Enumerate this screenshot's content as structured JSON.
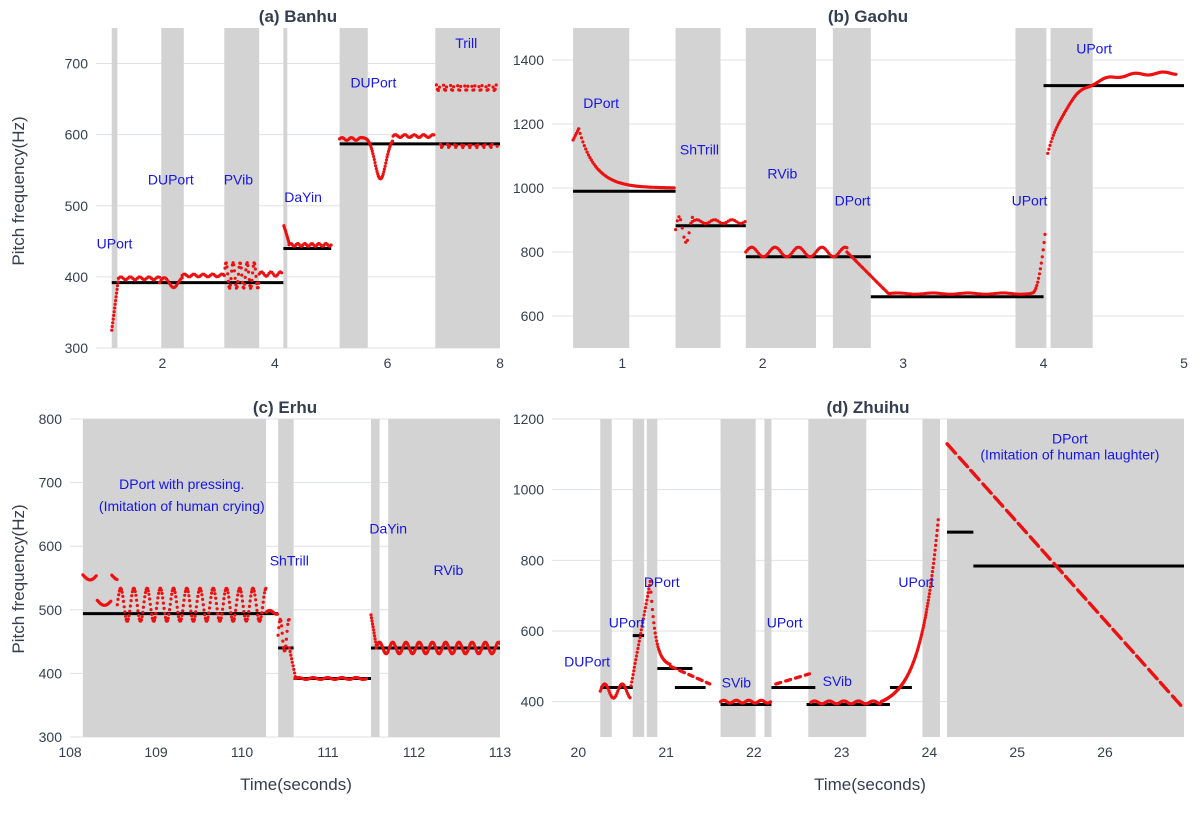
{
  "figure": {
    "ylabel": "Pitch frequency(Hz)",
    "xlabel": "Time(seconds)"
  },
  "colors": {
    "band": "#d3d3d3",
    "pitch": "#ee1111",
    "reference": "#000000",
    "annotation": "#1515e6",
    "text": "#333f4f"
  },
  "chart_data": [
    {
      "type": "scatter",
      "title": "(a) Banhu",
      "xlim": [
        0.82,
        8.0
      ],
      "ylim": [
        300,
        750
      ],
      "xticks": [
        2,
        4,
        6,
        8
      ],
      "yticks": [
        300,
        400,
        500,
        600,
        700
      ],
      "bands": [
        [
          1.1,
          1.2
        ],
        [
          1.98,
          2.38
        ],
        [
          3.1,
          3.72
        ],
        [
          4.15,
          4.22
        ],
        [
          5.15,
          5.65
        ],
        [
          6.85,
          8.0
        ]
      ],
      "refs": [
        [
          1.1,
          4.15,
          392
        ],
        [
          4.15,
          5.0,
          440
        ],
        [
          5.15,
          8.0,
          587
        ]
      ],
      "segments": [
        {
          "kind": "glide",
          "t0": 1.1,
          "t1": 1.22,
          "f0": 325,
          "f1": 398,
          "n": 14
        },
        {
          "kind": "vib",
          "t0": 1.22,
          "t1": 1.95,
          "f": 398,
          "amp": 2,
          "rate": 6,
          "step": 0.028
        },
        {
          "kind": "vib",
          "t0": 1.95,
          "t1": 2.35,
          "f": 392,
          "amp": 7,
          "rate": 3,
          "step": 0.025
        },
        {
          "kind": "vib",
          "t0": 2.35,
          "t1": 3.1,
          "f": 402,
          "amp": 2,
          "rate": 6,
          "step": 0.028
        },
        {
          "kind": "vib",
          "t0": 3.1,
          "t1": 3.72,
          "f": 402,
          "amp": 18,
          "rate": 8,
          "step": 0.012
        },
        {
          "kind": "vib",
          "t0": 3.72,
          "t1": 4.13,
          "f": 404,
          "amp": 3,
          "rate": 6,
          "step": 0.025
        },
        {
          "kind": "glide",
          "t0": 4.16,
          "t1": 4.25,
          "f0": 472,
          "f1": 448,
          "n": 10
        },
        {
          "kind": "vib",
          "t0": 4.25,
          "t1": 5.0,
          "f": 445,
          "amp": 2,
          "rate": 8,
          "step": 0.022
        },
        {
          "kind": "vib",
          "t0": 5.15,
          "t1": 5.55,
          "f": 594,
          "amp": 2,
          "rate": 6,
          "step": 0.025
        },
        {
          "kind": "dip",
          "t0": 5.55,
          "t1": 6.1,
          "f": 596,
          "depth": 58,
          "step": 0.012
        },
        {
          "kind": "vib",
          "t0": 6.1,
          "t1": 6.85,
          "f": 598,
          "amp": 2,
          "rate": 6,
          "step": 0.025
        },
        {
          "kind": "trill",
          "t0": 6.87,
          "t1": 7.95,
          "lo": 590,
          "hi": 670,
          "n": 8,
          "step": 0.018
        }
      ],
      "annotations": [
        {
          "text": "UPort",
          "x": 1.15,
          "y": 440
        },
        {
          "text": "DUPort",
          "x": 2.15,
          "y": 530
        },
        {
          "text": "PVib",
          "x": 3.35,
          "y": 530
        },
        {
          "text": "DaYin",
          "x": 4.5,
          "y": 505
        },
        {
          "text": "DUPort",
          "x": 5.75,
          "y": 666
        },
        {
          "text": "Trill",
          "x": 7.4,
          "y": 722
        }
      ]
    },
    {
      "type": "scatter",
      "title": "(b) Gaohu",
      "xlim": [
        0.5,
        5.0
      ],
      "ylim": [
        500,
        1500
      ],
      "xticks": [
        1,
        2,
        3,
        4,
        5
      ],
      "yticks": [
        600,
        800,
        1000,
        1200,
        1400
      ],
      "bands": [
        [
          0.65,
          1.05
        ],
        [
          1.38,
          1.7
        ],
        [
          1.88,
          2.38
        ],
        [
          2.5,
          2.77
        ],
        [
          3.8,
          4.02
        ],
        [
          4.05,
          4.35
        ]
      ],
      "refs": [
        [
          0.65,
          1.38,
          990
        ],
        [
          1.38,
          1.88,
          882
        ],
        [
          1.88,
          2.77,
          785
        ],
        [
          2.77,
          4.0,
          660
        ],
        [
          4.0,
          5.0,
          1320
        ]
      ],
      "segments": [
        {
          "kind": "glide",
          "t0": 0.65,
          "t1": 0.69,
          "f0": 1150,
          "f1": 1185,
          "n": 5
        },
        {
          "kind": "decay",
          "t0": 0.69,
          "t1": 1.38,
          "f0": 1185,
          "f1": 1000,
          "tau": 0.12,
          "step": 0.01
        },
        {
          "kind": "vib",
          "t0": 1.38,
          "t1": 1.5,
          "f": 870,
          "amp": 40,
          "rate": 10,
          "step": 0.012
        },
        {
          "kind": "vib",
          "t0": 1.5,
          "t1": 1.88,
          "f": 895,
          "amp": 6,
          "rate": 8,
          "step": 0.015
        },
        {
          "kind": "vib",
          "t0": 1.88,
          "t1": 2.6,
          "f": 800,
          "amp": 15,
          "rate": 6,
          "step": 0.01
        },
        {
          "kind": "glide",
          "t0": 2.6,
          "t1": 2.9,
          "f0": 800,
          "f1": 668,
          "n": 30
        },
        {
          "kind": "vib",
          "t0": 2.9,
          "t1": 3.92,
          "f": 670,
          "amp": 2,
          "rate": 4,
          "step": 0.012
        },
        {
          "kind": "rise",
          "t0": 3.92,
          "t1": 4.01,
          "f0": 672,
          "f1": 855,
          "n": 14
        },
        {
          "kind": "approach",
          "t0": 4.03,
          "t1": 4.95,
          "f0": 1105,
          "f1": 1360,
          "tau": 0.16,
          "step": 0.008
        }
      ],
      "annotations": [
        {
          "text": "DPort",
          "x": 0.85,
          "y": 1250
        },
        {
          "text": "ShTrill",
          "x": 1.55,
          "y": 1105
        },
        {
          "text": "RVib",
          "x": 2.14,
          "y": 1030
        },
        {
          "text": "DPort",
          "x": 2.64,
          "y": 945
        },
        {
          "text": "UPort",
          "x": 3.9,
          "y": 945
        },
        {
          "text": "UPort",
          "x": 4.36,
          "y": 1420
        }
      ]
    },
    {
      "type": "scatter",
      "title": "(c) Erhu",
      "xlim": [
        108.0,
        113.0
      ],
      "ylim": [
        300,
        800
      ],
      "xticks": [
        108,
        109,
        110,
        111,
        112,
        113
      ],
      "yticks": [
        300,
        400,
        500,
        600,
        700,
        800
      ],
      "bands": [
        [
          108.15,
          110.28
        ],
        [
          110.42,
          110.6
        ],
        [
          111.5,
          111.6
        ],
        [
          111.7,
          113.0
        ]
      ],
      "refs": [
        [
          108.15,
          110.42,
          494
        ],
        [
          110.42,
          110.6,
          440
        ],
        [
          110.6,
          111.5,
          392
        ],
        [
          111.5,
          113.0,
          440
        ]
      ],
      "segments": [
        {
          "kind": "trill",
          "t0": 108.15,
          "t1": 108.55,
          "lo": 515,
          "hi": 555,
          "n": 3,
          "step": 0.012
        },
        {
          "kind": "vib",
          "t0": 108.55,
          "t1": 110.28,
          "f": 508,
          "amp": 26,
          "rate": 6.5,
          "step": 0.008
        },
        {
          "kind": "vib",
          "t0": 110.28,
          "t1": 110.42,
          "f": 496,
          "amp": 3,
          "rate": 6,
          "step": 0.012
        },
        {
          "kind": "vib",
          "t0": 110.42,
          "t1": 110.55,
          "f": 460,
          "amp": 25,
          "rate": 10,
          "step": 0.008
        },
        {
          "kind": "glide",
          "t0": 110.55,
          "t1": 110.62,
          "f0": 440,
          "f1": 395,
          "n": 8
        },
        {
          "kind": "vib",
          "t0": 110.62,
          "t1": 111.46,
          "f": 392,
          "amp": 1.5,
          "rate": 6,
          "step": 0.012
        },
        {
          "kind": "glide",
          "t0": 111.5,
          "t1": 111.56,
          "f0": 492,
          "f1": 445,
          "n": 10
        },
        {
          "kind": "vib",
          "t0": 111.56,
          "t1": 113.0,
          "f": 440,
          "amp": 9,
          "rate": 6.5,
          "step": 0.008
        }
      ],
      "annotations": [
        {
          "text": "DPort with pressing.",
          "x": 109.3,
          "y": 690
        },
        {
          "text": "(Imitation of human crying)",
          "x": 109.3,
          "y": 655
        },
        {
          "text": "ShTrill",
          "x": 110.55,
          "y": 570
        },
        {
          "text": "DaYin",
          "x": 111.7,
          "y": 620
        },
        {
          "text": "RVib",
          "x": 112.4,
          "y": 555
        }
      ]
    },
    {
      "type": "scatter",
      "title": "(d) Zhuihu",
      "xlim": [
        19.7,
        26.9
      ],
      "ylim": [
        300,
        1200
      ],
      "xticks": [
        20,
        21,
        22,
        23,
        24,
        25,
        26
      ],
      "yticks": [
        400,
        600,
        800,
        1000,
        1200
      ],
      "bands": [
        [
          20.25,
          20.38
        ],
        [
          20.62,
          20.75
        ],
        [
          20.78,
          20.9
        ],
        [
          21.62,
          22.02
        ],
        [
          22.12,
          22.2
        ],
        [
          22.62,
          23.28
        ],
        [
          23.92,
          24.12
        ],
        [
          24.2,
          26.9
        ]
      ],
      "refs": [
        [
          20.25,
          20.62,
          440
        ],
        [
          20.62,
          20.75,
          587
        ],
        [
          20.9,
          21.3,
          494
        ],
        [
          21.1,
          21.45,
          440
        ],
        [
          21.62,
          22.2,
          392
        ],
        [
          22.2,
          22.7,
          440
        ],
        [
          22.6,
          23.55,
          392
        ],
        [
          23.55,
          23.8,
          440
        ],
        [
          24.2,
          24.5,
          880
        ],
        [
          24.5,
          26.9,
          784
        ]
      ],
      "segments": [
        {
          "kind": "vib",
          "t0": 20.25,
          "t1": 20.6,
          "f": 430,
          "amp": 20,
          "rate": 5,
          "step": 0.01
        },
        {
          "kind": "glide",
          "t0": 20.6,
          "t1": 20.82,
          "f0": 445,
          "f1": 740,
          "n": 28
        },
        {
          "kind": "decay",
          "t0": 20.82,
          "t1": 21.05,
          "f0": 740,
          "f1": 500,
          "tau": 0.06,
          "step": 0.008
        },
        {
          "kind": "dashed",
          "t0": 21.05,
          "t1": 21.5,
          "f0": 500,
          "f1": 450,
          "on": 0.06,
          "off": 0.04,
          "step": 0.008
        },
        {
          "kind": "vib",
          "t0": 21.62,
          "t1": 22.2,
          "f": 400,
          "amp": 4,
          "rate": 7,
          "step": 0.01
        },
        {
          "kind": "dashed",
          "t0": 22.25,
          "t1": 22.65,
          "f0": 450,
          "f1": 480,
          "on": 0.06,
          "off": 0.05,
          "step": 0.008
        },
        {
          "kind": "vib",
          "t0": 22.65,
          "t1": 23.45,
          "f": 398,
          "amp": 4,
          "rate": 6,
          "step": 0.01
        },
        {
          "kind": "expo",
          "t0": 23.45,
          "t1": 24.1,
          "f0": 400,
          "f1": 915,
          "n": 110
        },
        {
          "kind": "dashed",
          "t0": 24.2,
          "t1": 26.88,
          "f0": 1130,
          "f1": 385,
          "on": 0.1,
          "off": 0.035,
          "step": 0.006
        }
      ],
      "annotations": [
        {
          "text": "DUPort",
          "x": 20.1,
          "y": 500
        },
        {
          "text": "UPort",
          "x": 20.55,
          "y": 610
        },
        {
          "text": "DPort",
          "x": 20.95,
          "y": 725
        },
        {
          "text": "SVib",
          "x": 21.8,
          "y": 440
        },
        {
          "text": "UPort",
          "x": 22.35,
          "y": 610
        },
        {
          "text": "SVib",
          "x": 22.95,
          "y": 445
        },
        {
          "text": "UPort",
          "x": 23.85,
          "y": 725
        },
        {
          "text": "DPort",
          "x": 25.6,
          "y": 1130
        },
        {
          "text": "(Imitation of human laughter)",
          "x": 25.6,
          "y": 1085
        }
      ]
    }
  ]
}
